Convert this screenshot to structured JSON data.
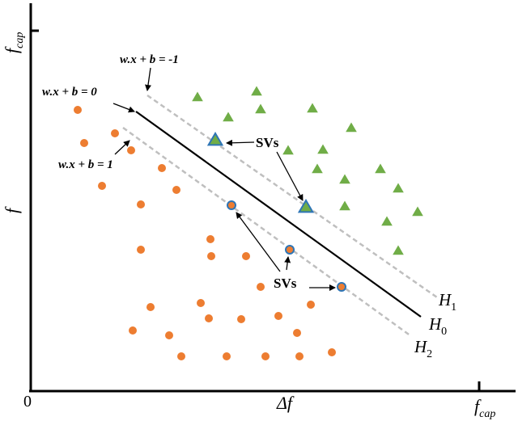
{
  "axes": {
    "origin_label": "0",
    "x_tick_label": "Δf",
    "x_axis_label": {
      "main": "f",
      "sub": "cap"
    },
    "y_axis_top_label": {
      "main": "f",
      "sub": "cap"
    },
    "y_axis_mid_label": "f"
  },
  "equations": {
    "neg_margin": "w.x + b = -1",
    "decision": "w.x + b = 0",
    "pos_margin": "w.x + b = 1"
  },
  "hyperplanes": {
    "h1": {
      "main": "H",
      "sub": "1"
    },
    "h0": {
      "main": "H",
      "sub": "0"
    },
    "h2": {
      "main": "H",
      "sub": "2"
    }
  },
  "sv_labels": {
    "upper": "SVs",
    "lower": "SVs"
  },
  "colors": {
    "circle_fill": "#ED7D31",
    "triangle_fill": "#70AD47",
    "sv_outline": "#2E75B6",
    "margin_line": "#BFBFBF",
    "decision_line": "#000000"
  },
  "chart_data": {
    "type": "scatter",
    "series": [
      {
        "marker": "circle",
        "points": [
          [
            96,
            136
          ],
          [
            104,
            177
          ],
          [
            142,
            165
          ],
          [
            162,
            186
          ],
          [
            200,
            208
          ],
          [
            126,
            230
          ],
          [
            174,
            253
          ],
          [
            218,
            235
          ],
          [
            174,
            309
          ],
          [
            260,
            296
          ],
          [
            261,
            317
          ],
          [
            304,
            317
          ],
          [
            286,
            254
          ],
          [
            322,
            355
          ],
          [
            248,
            375
          ],
          [
            186,
            380
          ],
          [
            164,
            409
          ],
          [
            209,
            415
          ],
          [
            258,
            394
          ],
          [
            298,
            395
          ],
          [
            344,
            391
          ],
          [
            384,
            377
          ],
          [
            367,
            412
          ],
          [
            224,
            441
          ],
          [
            280,
            441
          ],
          [
            328,
            441
          ],
          [
            370,
            441
          ],
          [
            410,
            436
          ],
          [
            358,
            309
          ],
          [
            422,
            355
          ]
        ]
      },
      {
        "marker": "triangle",
        "points": [
          [
            244,
            120
          ],
          [
            317,
            113
          ],
          [
            282,
            145
          ],
          [
            322,
            135
          ],
          [
            386,
            134
          ],
          [
            434,
            158
          ],
          [
            266,
            173
          ],
          [
            356,
            186
          ],
          [
            399,
            185
          ],
          [
            392,
            209
          ],
          [
            426,
            222
          ],
          [
            470,
            209
          ],
          [
            492,
            233
          ],
          [
            378,
            256
          ],
          [
            426,
            255
          ],
          [
            516,
            262
          ],
          [
            478,
            274
          ],
          [
            492,
            310
          ]
        ]
      }
    ],
    "support_vectors": {
      "circle": [
        [
          286,
          254
        ],
        [
          358,
          309
        ],
        [
          422,
          355
        ]
      ],
      "triangle": [
        [
          266,
          173
        ],
        [
          378,
          256
        ]
      ]
    }
  }
}
